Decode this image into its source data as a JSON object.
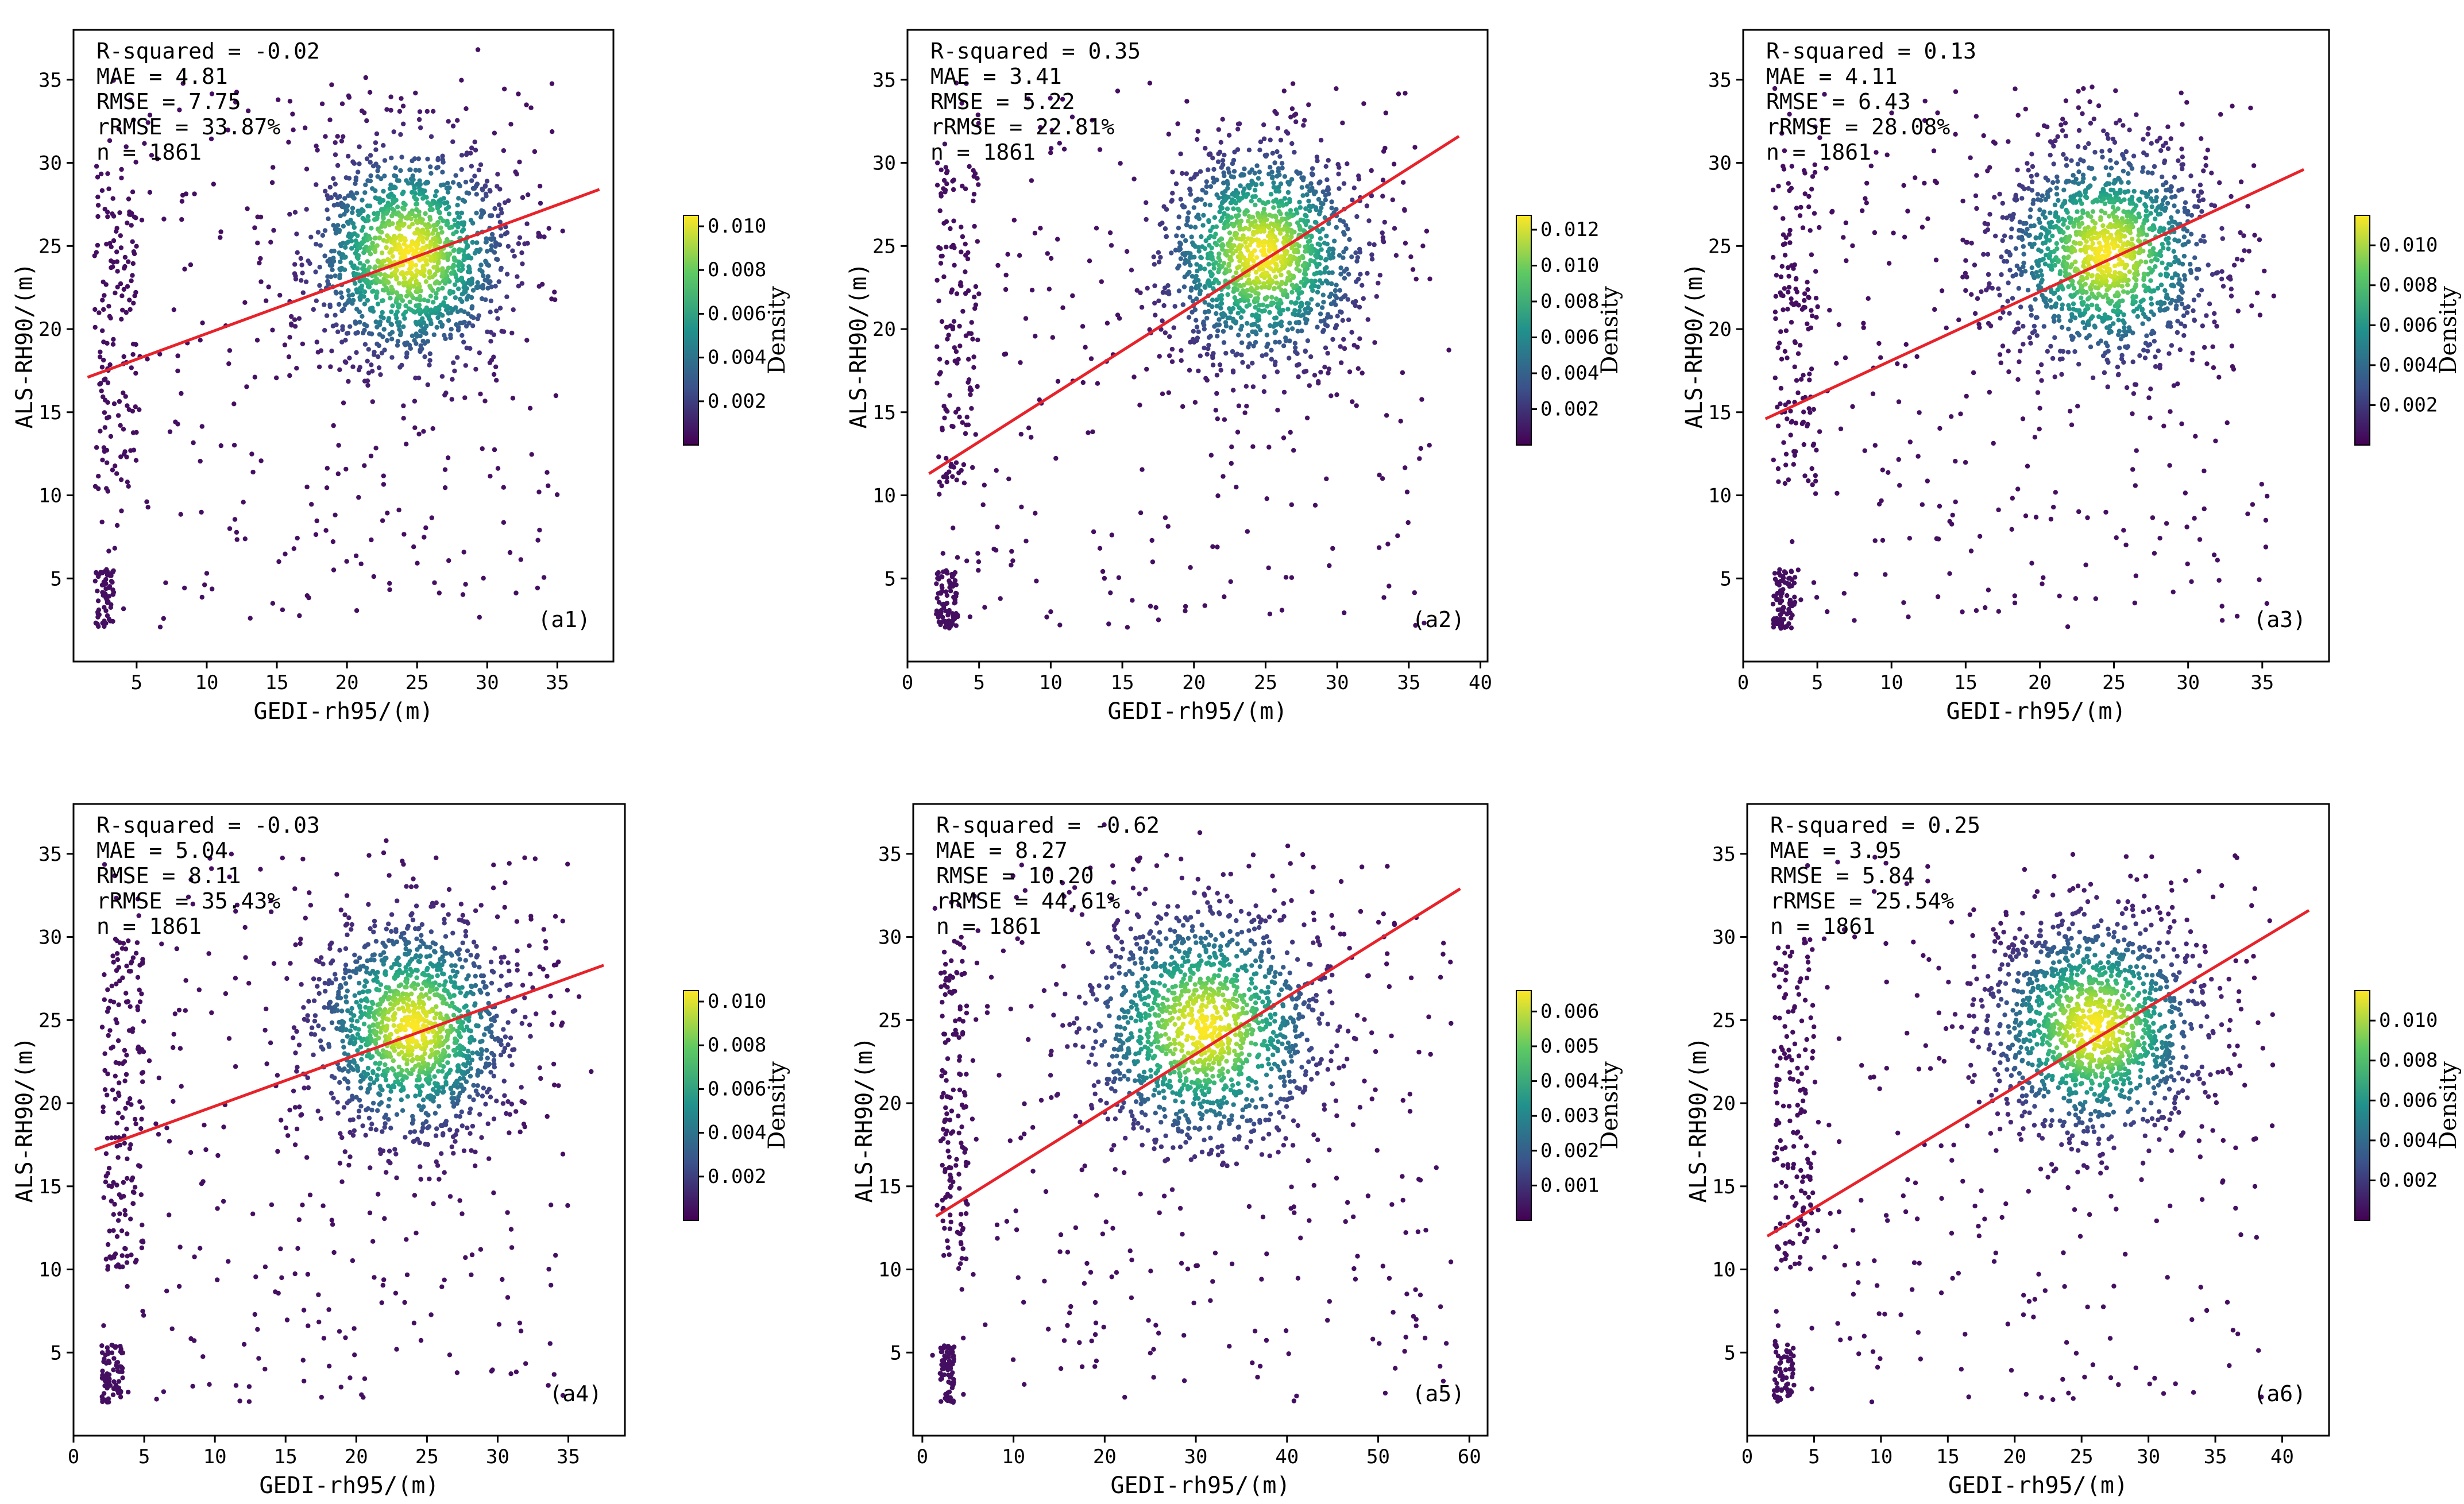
{
  "figure": {
    "colorbar_label": "Density",
    "colormap": [
      "#440154",
      "#3b528b",
      "#21918c",
      "#5ec962",
      "#fde725"
    ],
    "fit_line_color": "#e8222a"
  },
  "chart_data": [
    {
      "type": "scatter",
      "id": "a1",
      "panel_label": "(a1)",
      "xlabel": "GEDI-rh95/(m)",
      "ylabel": "ALS-RH90/(m)",
      "xlim": [
        0.5,
        39
      ],
      "ylim": [
        0,
        38
      ],
      "xticks": [
        5,
        10,
        15,
        20,
        25,
        30,
        35
      ],
      "yticks": [
        5,
        10,
        15,
        20,
        25,
        30,
        35
      ],
      "stats": [
        "R-squared = -0.02",
        "MAE = 4.81",
        "RMSE = 7.75",
        "rRMSE = 33.87%",
        "n = 1861"
      ],
      "fit_line": {
        "x": [
          1.5,
          38
        ],
        "y": [
          17.1,
          28.4
        ]
      },
      "center": [
        24.5,
        24.5
      ],
      "spread": [
        3.6,
        3.3
      ],
      "colorbar": {
        "ticks": [
          0.002,
          0.004,
          0.006,
          0.008,
          0.01
        ],
        "labels": [
          "0.002",
          "0.004",
          "0.006",
          "0.008",
          "0.010"
        ],
        "max": 0.0105
      }
    },
    {
      "type": "scatter",
      "id": "a2",
      "panel_label": "(a2)",
      "xlabel": "GEDI-rh95/(m)",
      "ylabel": "ALS-RH90/(m)",
      "xlim": [
        0,
        40.5
      ],
      "ylim": [
        0,
        38
      ],
      "xticks": [
        0,
        5,
        10,
        15,
        20,
        25,
        30,
        35,
        40
      ],
      "yticks": [
        5,
        10,
        15,
        20,
        25,
        30,
        35
      ],
      "stats": [
        "R-squared = 0.35",
        "MAE = 3.41",
        "RMSE = 5.22",
        "rRMSE = 22.81%",
        "n = 1861"
      ],
      "fit_line": {
        "x": [
          1.5,
          38.5
        ],
        "y": [
          11.3,
          31.6
        ]
      },
      "center": [
        24.8,
        24.5
      ],
      "spread": [
        3.6,
        3.3
      ],
      "colorbar": {
        "ticks": [
          0.002,
          0.004,
          0.006,
          0.008,
          0.01,
          0.012
        ],
        "labels": [
          "0.002",
          "0.004",
          "0.006",
          "0.008",
          "0.010",
          "0.012"
        ],
        "max": 0.0128
      }
    },
    {
      "type": "scatter",
      "id": "a3",
      "panel_label": "(a3)",
      "xlabel": "GEDI-rh95/(m)",
      "ylabel": "ALS-RH90/(m)",
      "xlim": [
        0,
        39.5
      ],
      "ylim": [
        0,
        38
      ],
      "xticks": [
        0,
        5,
        10,
        15,
        20,
        25,
        30,
        35
      ],
      "yticks": [
        5,
        10,
        15,
        20,
        25,
        30,
        35
      ],
      "stats": [
        "R-squared = 0.13",
        "MAE = 4.11",
        "RMSE = 6.43",
        "rRMSE = 28.08%",
        "n = 1861"
      ],
      "fit_line": {
        "x": [
          1.5,
          37.8
        ],
        "y": [
          14.6,
          29.6
        ]
      },
      "center": [
        24.5,
        24.5
      ],
      "spread": [
        3.6,
        3.3
      ],
      "colorbar": {
        "ticks": [
          0.002,
          0.004,
          0.006,
          0.008,
          0.01
        ],
        "labels": [
          "0.002",
          "0.004",
          "0.006",
          "0.008",
          "0.010"
        ],
        "max": 0.0115
      }
    },
    {
      "type": "scatter",
      "id": "a4",
      "panel_label": "(a4)",
      "xlabel": "GEDI-rh95/(m)",
      "ylabel": "ALS-RH90/(m)",
      "xlim": [
        0,
        39
      ],
      "ylim": [
        0,
        38
      ],
      "xticks": [
        0,
        5,
        10,
        15,
        20,
        25,
        30,
        35
      ],
      "yticks": [
        5,
        10,
        15,
        20,
        25,
        30,
        35
      ],
      "stats": [
        "R-squared = -0.03",
        "MAE = 5.04",
        "RMSE = 8.11",
        "rRMSE = 35.43%",
        "n = 1861"
      ],
      "fit_line": {
        "x": [
          1.5,
          37.5
        ],
        "y": [
          17.2,
          28.3
        ]
      },
      "center": [
        24.0,
        24.5
      ],
      "spread": [
        3.5,
        3.3
      ],
      "colorbar": {
        "ticks": [
          0.002,
          0.004,
          0.006,
          0.008,
          0.01
        ],
        "labels": [
          "0.002",
          "0.004",
          "0.006",
          "0.008",
          "0.010"
        ],
        "max": 0.0105
      }
    },
    {
      "type": "scatter",
      "id": "a5",
      "panel_label": "(a5)",
      "xlabel": "GEDI-rh95/(m)",
      "ylabel": "ALS-RH90/(m)",
      "xlim": [
        -1,
        62
      ],
      "ylim": [
        0,
        38
      ],
      "xticks": [
        0,
        10,
        20,
        30,
        40,
        50,
        60
      ],
      "yticks": [
        5,
        10,
        15,
        20,
        25,
        30,
        35
      ],
      "stats": [
        "R-squared = -0.62",
        "MAE = 8.27",
        "RMSE = 10.20",
        "rRMSE = 44.61%",
        "n = 1861"
      ],
      "fit_line": {
        "x": [
          1.5,
          59
        ],
        "y": [
          13.2,
          32.9
        ]
      },
      "center": [
        31.0,
        24.5
      ],
      "spread": [
        6.5,
        3.6
      ],
      "colorbar": {
        "ticks": [
          0.001,
          0.002,
          0.003,
          0.004,
          0.005,
          0.006
        ],
        "labels": [
          "0.001",
          "0.002",
          "0.003",
          "0.004",
          "0.005",
          "0.006"
        ],
        "max": 0.0066
      }
    },
    {
      "type": "scatter",
      "id": "a6",
      "panel_label": "(a6)",
      "xlabel": "GEDI-rh95/(m)",
      "ylabel": "ALS-RH90/(m)",
      "xlim": [
        0,
        43.5
      ],
      "ylim": [
        0,
        38
      ],
      "xticks": [
        0,
        5,
        10,
        15,
        20,
        25,
        30,
        35,
        40
      ],
      "yticks": [
        5,
        10,
        15,
        20,
        25,
        30,
        35
      ],
      "stats": [
        "R-squared = 0.25",
        "MAE = 3.95",
        "RMSE = 5.84",
        "rRMSE = 25.54%",
        "n = 1861"
      ],
      "fit_line": {
        "x": [
          1.5,
          42
        ],
        "y": [
          12.0,
          31.6
        ]
      },
      "center": [
        26.0,
        24.5
      ],
      "spread": [
        4.0,
        3.3
      ],
      "colorbar": {
        "ticks": [
          0.002,
          0.004,
          0.006,
          0.008,
          0.01
        ],
        "labels": [
          "0.002",
          "0.004",
          "0.006",
          "0.008",
          "0.010"
        ],
        "max": 0.0115
      }
    }
  ]
}
